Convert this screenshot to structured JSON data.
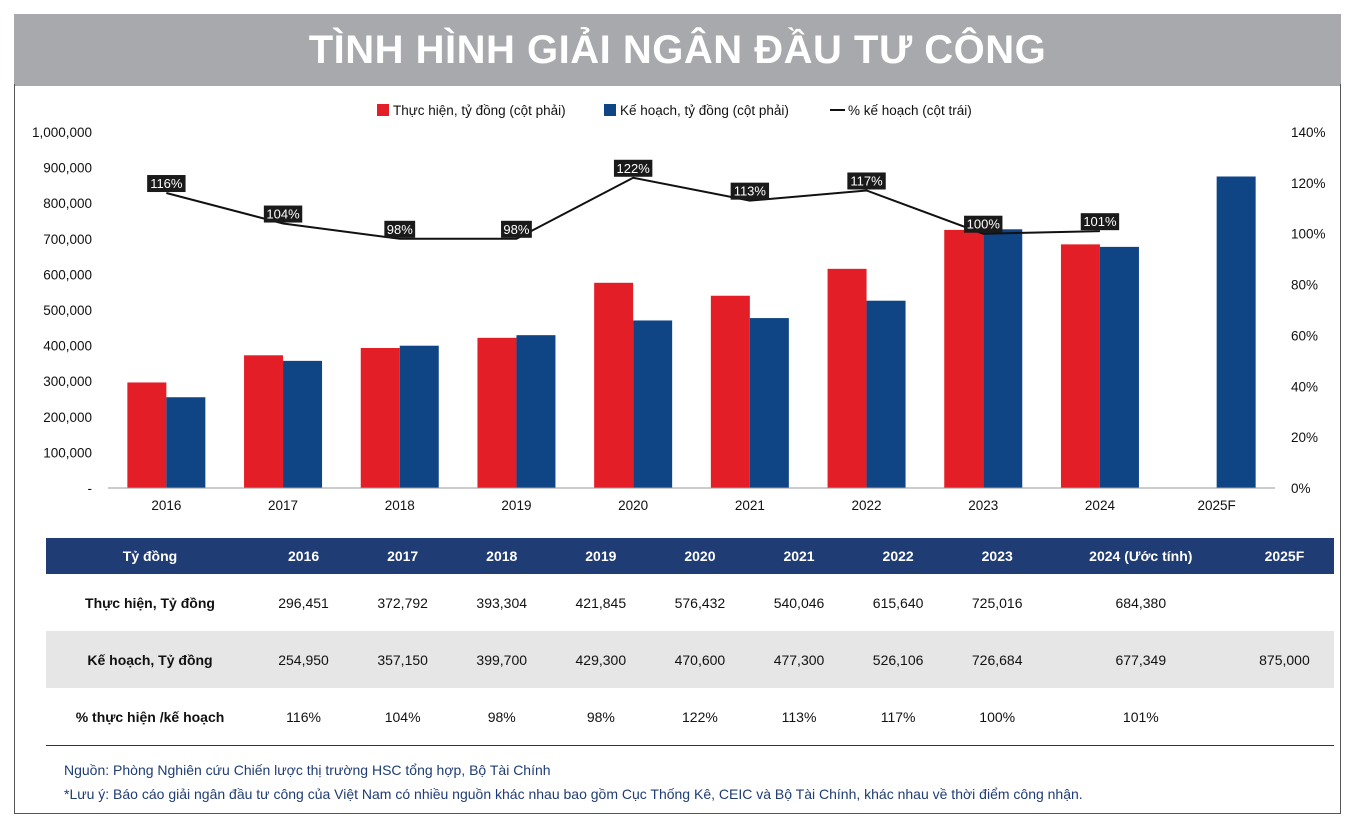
{
  "title": "TÌNH HÌNH GIẢI NGÂN ĐẦU TƯ CÔNG",
  "legend": {
    "actual": "Thực hiện, tỷ đồng (cột phải)",
    "plan": "Kế hoạch, tỷ đồng (cột phải)",
    "pct": "% kế hoạch (cột trái)"
  },
  "colors": {
    "actual": "#e41e26",
    "plan": "#0f4585",
    "line": "#111111",
    "header": "#1f3c74"
  },
  "chart_data": {
    "type": "bar",
    "categories": [
      "2016",
      "2017",
      "2018",
      "2019",
      "2020",
      "2021",
      "2022",
      "2023",
      "2024",
      "2025F"
    ],
    "series": [
      {
        "name": "Thực hiện, tỷ đồng (cột phải)",
        "type": "bar",
        "values": [
          296451,
          372792,
          393304,
          421845,
          576432,
          540046,
          615640,
          725016,
          684380,
          null
        ]
      },
      {
        "name": "Kế hoạch, tỷ đồng (cột phải)",
        "type": "bar",
        "values": [
          254950,
          357150,
          399700,
          429300,
          470600,
          477300,
          526106,
          726684,
          677349,
          875000
        ]
      },
      {
        "name": "% kế hoạch (cột trái)",
        "type": "line",
        "values": [
          116,
          104,
          98,
          98,
          122,
          113,
          117,
          100,
          101,
          null
        ]
      }
    ],
    "pct_labels": [
      "116%",
      "104%",
      "98%",
      "98%",
      "122%",
      "113%",
      "117%",
      "100%",
      "101%",
      ""
    ],
    "left_axis": {
      "range": [
        0,
        1000000
      ],
      "ticks": [
        "-",
        "100,000",
        "200,000",
        "300,000",
        "400,000",
        "500,000",
        "600,000",
        "700,000",
        "800,000",
        "900,000",
        "1,000,000"
      ]
    },
    "right_axis": {
      "range": [
        0,
        140
      ],
      "ticks": [
        "0%",
        "20%",
        "40%",
        "60%",
        "80%",
        "100%",
        "120%",
        "140%"
      ]
    },
    "legend_position": "top",
    "grid": false
  },
  "table": {
    "header_label": "Tỷ đồng",
    "columns": [
      "2016",
      "2017",
      "2018",
      "2019",
      "2020",
      "2021",
      "2022",
      "2023",
      "2024 (Ước tính)",
      "2025F"
    ],
    "rows": [
      {
        "label": "Thực hiện, Tỷ đồng",
        "cells": [
          "296,451",
          "372,792",
          "393,304",
          "421,845",
          "576,432",
          "540,046",
          "615,640",
          "725,016",
          "684,380",
          ""
        ]
      },
      {
        "label": "Kế hoạch, Tỷ đồng",
        "cells": [
          "254,950",
          "357,150",
          "399,700",
          "429,300",
          "470,600",
          "477,300",
          "526,106",
          "726,684",
          "677,349",
          "875,000"
        ]
      },
      {
        "label": "% thực hiện /kế hoạch",
        "cells": [
          "116%",
          "104%",
          "98%",
          "98%",
          "122%",
          "113%",
          "117%",
          "100%",
          "101%",
          ""
        ]
      }
    ]
  },
  "notes": {
    "source": "Nguồn: Phòng Nghiên cứu Chiến lược thị trường HSC tổng hợp, Bộ Tài Chính",
    "remark": "*Lưu ý: Báo cáo giải ngân đầu tư công của Việt Nam có nhiều nguồn khác nhau bao gồm Cục Thống Kê, CEIC và Bộ Tài Chính, khác nhau về thời điểm công nhận."
  }
}
